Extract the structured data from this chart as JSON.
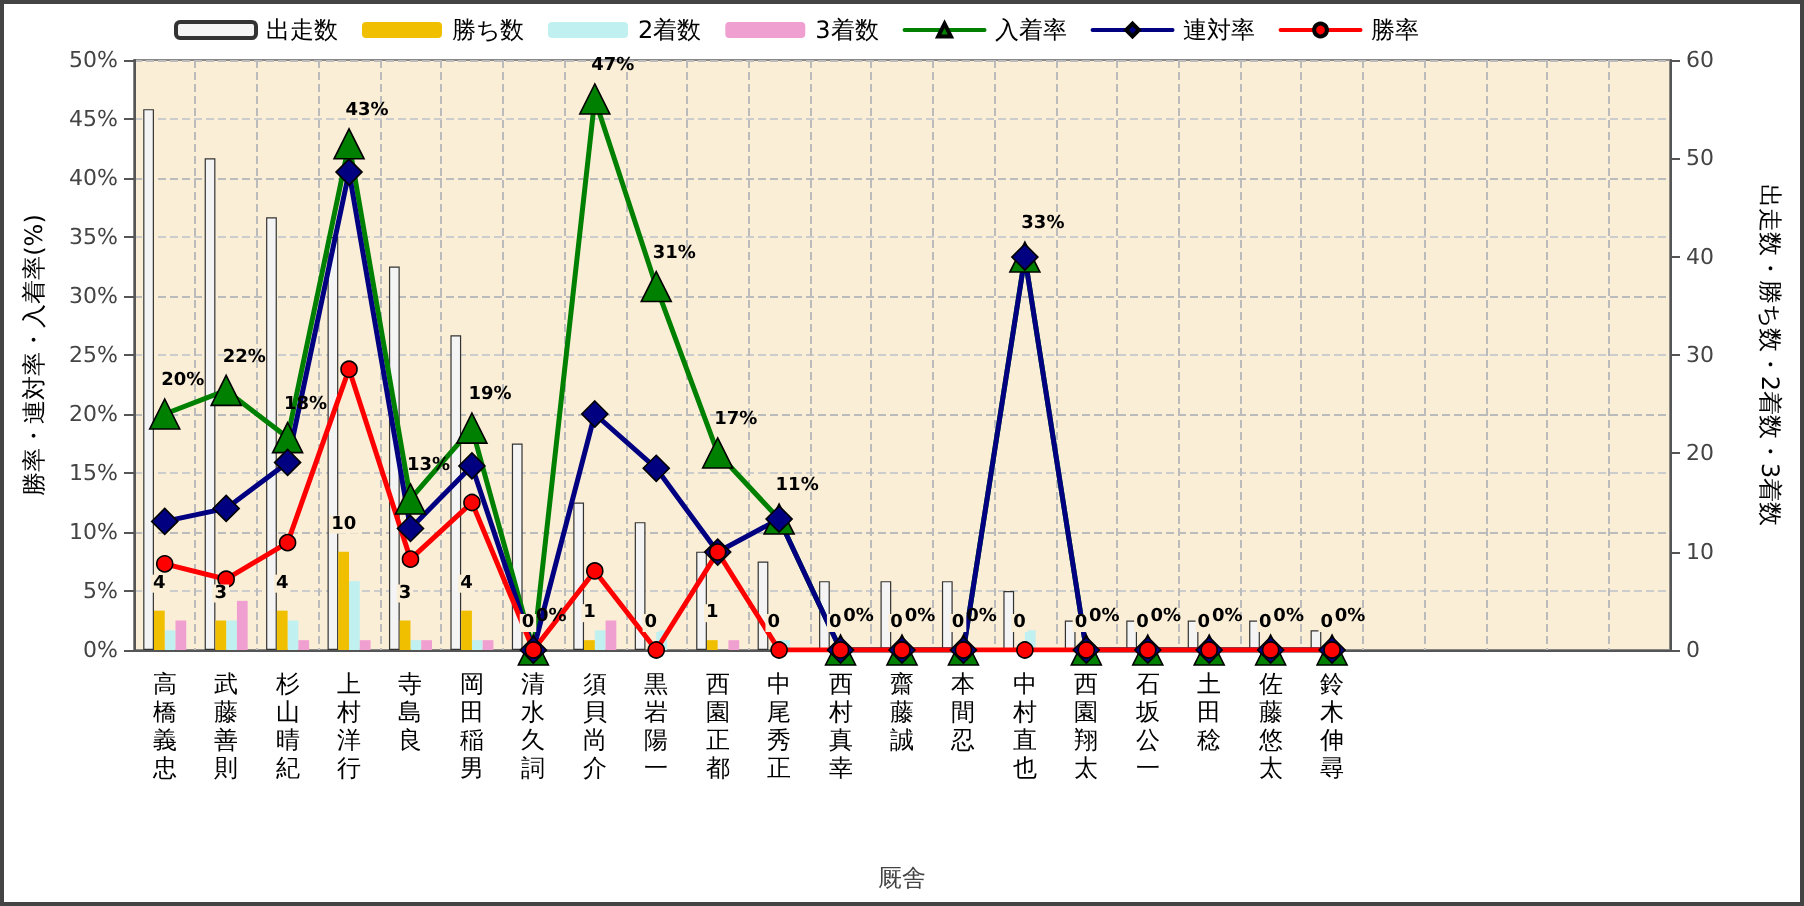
{
  "chart_data": {
    "type": "bar",
    "xlabel": "厩舎",
    "ylabel": "勝率・連対率・入着率(%)",
    "y2label": "出走数・勝ち数・2着数・3着数",
    "categories": [
      "高橋義忠",
      "武藤善則",
      "杉山晴紀",
      "上村洋行",
      "寺島良",
      "岡田稲男",
      "清水久詞",
      "須貝尚介",
      "黒岩陽一",
      "西園正都",
      "中尾秀正",
      "西村真幸",
      "齋藤誠",
      "本間忍",
      "中村直也",
      "西園翔太",
      "石坂公一",
      "土田稔",
      "佐藤悠太",
      "鈴木伸尋",
      null,
      null,
      null,
      null,
      null
    ],
    "series": [
      {
        "name": "出走数",
        "axis": "y2",
        "color": "#f4f4f4",
        "values": [
          55,
          50,
          44,
          42,
          39,
          32,
          21,
          15,
          13,
          10,
          9,
          7,
          7,
          7,
          6,
          3,
          3,
          3,
          3,
          2,
          null,
          null,
          null,
          null,
          null
        ]
      },
      {
        "name": "勝ち数",
        "axis": "y2",
        "color": "#f0c000",
        "values": [
          4,
          3,
          4,
          10,
          3,
          4,
          0,
          1,
          0,
          1,
          0,
          0,
          0,
          0,
          0,
          0,
          0,
          0,
          0,
          0,
          null,
          null,
          null,
          null,
          null
        ],
        "value_labels": [
          "4",
          "3",
          "4",
          "10",
          "3",
          "4",
          "0",
          "1",
          "0",
          "1",
          "0",
          "0",
          "0",
          "0",
          "0",
          "0",
          "0",
          "0",
          "0",
          "0",
          null,
          null,
          null,
          null,
          null
        ]
      },
      {
        "name": "2着数",
        "axis": "y2",
        "color": "#c0f0f0",
        "values": [
          2,
          3,
          3,
          7,
          1,
          1,
          0,
          2,
          2,
          0,
          1,
          0,
          0,
          0,
          2,
          0,
          0,
          0,
          0,
          0,
          null,
          null,
          null,
          null,
          null
        ]
      },
      {
        "name": "3着数",
        "axis": "y2",
        "color": "#f0a0d0",
        "values": [
          3,
          5,
          1,
          1,
          1,
          1,
          0,
          3,
          0,
          1,
          0,
          0,
          0,
          0,
          0,
          0,
          0,
          0,
          0,
          0,
          null,
          null,
          null,
          null,
          null
        ]
      },
      {
        "name": "入着率",
        "type": "line",
        "marker": "triangle",
        "color": "#008000",
        "values": [
          20,
          22,
          18,
          42.9,
          12.8,
          18.8,
          0,
          46.7,
          30.8,
          16.7,
          11.1,
          0,
          0,
          0,
          33.3,
          0,
          0,
          0,
          0,
          0,
          null,
          null,
          null,
          null,
          null
        ],
        "value_labels": [
          "20%",
          "22%",
          "18%",
          "43%",
          "13%",
          "19%",
          "0%",
          "47%",
          "31%",
          "17%",
          "11%",
          "0%",
          "0%",
          "0%",
          "33%",
          "0%",
          "0%",
          "0%",
          "0%",
          "0%",
          null,
          null,
          null,
          null,
          null
        ]
      },
      {
        "name": "連対率",
        "type": "line",
        "marker": "diamond",
        "color": "#000080",
        "values": [
          10.9,
          12,
          15.9,
          40.5,
          10.3,
          15.6,
          0,
          20,
          15.4,
          8.3,
          11.1,
          0,
          0,
          0,
          33.3,
          0,
          0,
          0,
          0,
          0,
          null,
          null,
          null,
          null,
          null
        ]
      },
      {
        "name": "勝率",
        "type": "line",
        "marker": "circle",
        "color": "#ff0000",
        "values": [
          7.3,
          6,
          9.1,
          23.8,
          7.7,
          12.5,
          0,
          6.7,
          0,
          8.3,
          0,
          0,
          0,
          0,
          0,
          0,
          0,
          0,
          0,
          0,
          null,
          null,
          null,
          null,
          null
        ]
      }
    ],
    "ylim": [
      0,
      50
    ],
    "yticks": [
      {
        "value": 0,
        "label": "0%"
      },
      {
        "value": 5,
        "label": "5%"
      },
      {
        "value": 10,
        "label": "10%"
      },
      {
        "value": 15,
        "label": "15%"
      },
      {
        "value": 20,
        "label": "20%"
      },
      {
        "value": 25,
        "label": "25%"
      },
      {
        "value": 30,
        "label": "30%"
      },
      {
        "value": 35,
        "label": "35%"
      },
      {
        "value": 40,
        "label": "40%"
      },
      {
        "value": 45,
        "label": "45%"
      },
      {
        "value": 50,
        "label": "50%"
      }
    ],
    "y2lim": [
      0,
      60
    ],
    "y2ticks": [
      0,
      10,
      20,
      30,
      40,
      50,
      60
    ],
    "grid": true,
    "legend": "top"
  }
}
